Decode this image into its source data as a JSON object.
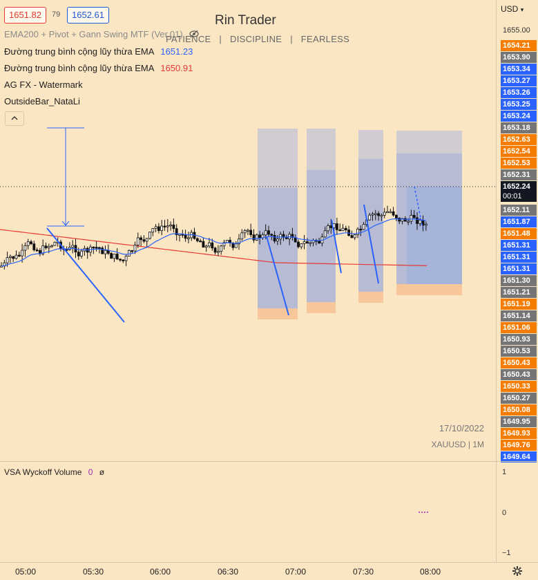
{
  "header": {
    "bid_price": "1651.82",
    "spread": "79",
    "ask_price": "1652.61",
    "bid_color": "#e53935",
    "ask_color": "#1e5bd6"
  },
  "watermark": {
    "title": "Rin Trader",
    "subtitle_parts": [
      "PATIENCE",
      "|",
      "DISCIPLINE",
      "|",
      "FEARLESS"
    ],
    "date": "17/10/2022",
    "symbol": "XAUUSD  |  1M"
  },
  "indicators": [
    {
      "name": "EMA200 + Pivot + Gann Swing MTF (Ver.01)",
      "value": ""
    },
    {
      "name": "Đường trung bình cộng lũy thừa EMA",
      "value": "1651.23",
      "color": "#2962ff"
    },
    {
      "name": "Đường trung bình cộng lũy thừa EMA",
      "value": "1650.91",
      "color": "#e53935"
    },
    {
      "name": "AG FX - Watermark",
      "value": ""
    },
    {
      "name": "OutsideBar_NataLi",
      "value": ""
    }
  ],
  "collapse_icon": "chevron-up-icon",
  "currency": "USD",
  "price_axis": {
    "top_tick": "1655.00",
    "labels": [
      {
        "text": "1654.21",
        "color": "#f57c00"
      },
      {
        "text": "1653.90",
        "color": "#757575"
      },
      {
        "text": "1653.34",
        "color": "#2962ff"
      },
      {
        "text": "1653.27",
        "color": "#2962ff"
      },
      {
        "text": "1653.26",
        "color": "#2962ff"
      },
      {
        "text": "1653.25",
        "color": "#2962ff"
      },
      {
        "text": "1653.24",
        "color": "#2962ff"
      },
      {
        "text": "1653.18",
        "color": "#757575"
      },
      {
        "text": "1652.63",
        "color": "#f57c00"
      },
      {
        "text": "1652.54",
        "color": "#f57c00"
      },
      {
        "text": "1652.53",
        "color": "#f57c00"
      },
      {
        "text": "1652.31",
        "color": "#757575"
      },
      {
        "text": "1652.24",
        "color": "#131722",
        "sub": "00:01"
      },
      {
        "text": "1652.11",
        "color": "#757575"
      },
      {
        "text": "1651.87",
        "color": "#2962ff"
      },
      {
        "text": "1651.48",
        "color": "#f57c00"
      },
      {
        "text": "1651.31",
        "color": "#2962ff"
      },
      {
        "text": "1651.31",
        "color": "#2962ff"
      },
      {
        "text": "1651.31",
        "color": "#2962ff"
      },
      {
        "text": "1651.30",
        "color": "#757575"
      },
      {
        "text": "1651.21",
        "color": "#757575"
      },
      {
        "text": "1651.19",
        "color": "#f57c00"
      },
      {
        "text": "1651.14",
        "color": "#757575"
      },
      {
        "text": "1651.06",
        "color": "#f57c00"
      },
      {
        "text": "1650.93",
        "color": "#757575"
      },
      {
        "text": "1650.53",
        "color": "#757575"
      },
      {
        "text": "1650.43",
        "color": "#f57c00"
      },
      {
        "text": "1650.43",
        "color": "#757575"
      },
      {
        "text": "1650.33",
        "color": "#f57c00"
      },
      {
        "text": "1650.27",
        "color": "#757575"
      },
      {
        "text": "1650.08",
        "color": "#f57c00"
      },
      {
        "text": "1649.95",
        "color": "#757575"
      },
      {
        "text": "1649.93",
        "color": "#f57c00"
      },
      {
        "text": "1649.76",
        "color": "#f57c00"
      },
      {
        "text": "1649.64",
        "color": "#2962ff"
      }
    ]
  },
  "volume_pane": {
    "name": "VSA Wyckoff Volume",
    "value": "0",
    "value_color": "#9c27b0",
    "extra": "ø",
    "ticks": [
      "1",
      "0",
      "−1"
    ]
  },
  "time_axis": [
    "05:00",
    "05:30",
    "06:00",
    "06:30",
    "07:00",
    "07:30",
    "08:00"
  ],
  "settings_icon": "gear-icon"
}
